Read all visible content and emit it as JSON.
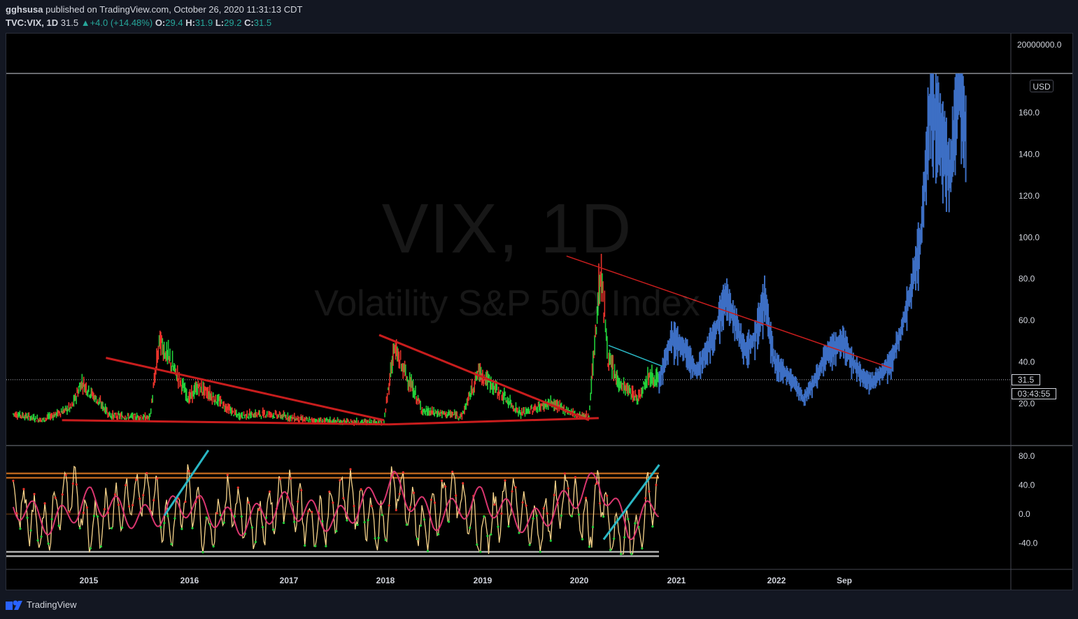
{
  "header": {
    "author": "gghsusa",
    "published_text": "published on TradingView.com, October 26, 2020 11:31:13 CDT",
    "symbol": "TVC:VIX, 1D",
    "last": "31.5",
    "change_arrow": "▲",
    "change": "+4.0 (+14.48%)",
    "o_label": "O:",
    "o_value": "29.4",
    "h_label": "H:",
    "h_value": "31.9",
    "l_label": "L:",
    "l_value": "29.2",
    "c_label": "C:",
    "c_value": "31.5"
  },
  "watermark": {
    "line1": "VIX, 1D",
    "line2": "Volatility S&P 500 Index"
  },
  "currency_badge": "USD",
  "price_tag": "31.5",
  "countdown_tag": "03:43:55",
  "footer": {
    "brand": "TradingView",
    "logo_icon": "tradingview-logo-icon"
  },
  "colors": {
    "background": "#000000",
    "candle_up": "#22d03a",
    "candle_down": "#e8332b",
    "projection": "#3d6fc4",
    "trendline_red": "#c81d1d",
    "trendline_cyan": "#2ab7c4",
    "osc_fast": "#f6d38a",
    "osc_slow": "#d9366f",
    "osc_band": "#b8641c",
    "osc_floor": "#b0b0b0",
    "axis_text": "#d1d4dc"
  },
  "chart_data": [
    {
      "type": "candlestick",
      "title": "VIX, 1D",
      "subtitle": "Volatility S&P 500 Index",
      "ylabel": "USD",
      "x_ticks": [
        "2015",
        "2016",
        "2017",
        "2018",
        "2019",
        "2020",
        "2021",
        "2022",
        "Sep"
      ],
      "y_ticks": [
        "20.0",
        "40.0",
        "60.0",
        "80.0",
        "100.0",
        "120.0",
        "140.0",
        "160.0"
      ],
      "y_top_tick": "20000000.0",
      "ylim": [
        5,
        183
      ],
      "last_price": 31.5,
      "series": [
        {
          "name": "",
          "kind": "historical",
          "x": [
            2014.2,
            2014.5,
            2014.8,
            2014.9,
            2015.2,
            2015.6,
            2015.7,
            2016.0,
            2016.1,
            2016.5,
            2016.8,
            2017.2,
            2017.6,
            2018.0,
            2018.1,
            2018.4,
            2018.8,
            2018.97,
            2019.4,
            2019.7,
            2020.0,
            2020.1,
            2020.22,
            2020.3,
            2020.4,
            2020.6,
            2020.7,
            2020.82
          ],
          "y": [
            15,
            12,
            18,
            30,
            14,
            13,
            50,
            22,
            28,
            14,
            15,
            12,
            11,
            11,
            46,
            16,
            14,
            35,
            15,
            20,
            14,
            14,
            84,
            40,
            30,
            22,
            33,
            31.5
          ]
        },
        {
          "name": "",
          "kind": "projection",
          "x": [
            2020.82,
            2020.95,
            2021.1,
            2021.2,
            2021.4,
            2021.5,
            2021.7,
            2021.8,
            2021.9,
            2022.0,
            2022.1,
            2022.2,
            2022.3,
            2022.4,
            2022.55,
            2022.7,
            2022.8,
            2022.9,
            2023.0,
            2023.1,
            2023.2,
            2023.3,
            2023.4,
            2023.5,
            2023.6,
            2023.7,
            2023.8,
            2023.9,
            2023.97
          ],
          "y": [
            31,
            52,
            45,
            35,
            55,
            72,
            45,
            52,
            70,
            40,
            35,
            30,
            22,
            30,
            45,
            50,
            40,
            33,
            30,
            35,
            40,
            55,
            75,
            100,
            165,
            150,
            130,
            175,
            145
          ]
        }
      ],
      "trendlines": [
        {
          "name": "",
          "x": [
            2015.15,
            2018.0
          ],
          "y": [
            42,
            12
          ]
        },
        {
          "name": "",
          "x": [
            2017.95,
            2020.1
          ],
          "y": [
            53,
            12
          ]
        },
        {
          "name": "",
          "x": [
            2014.7,
            2018.05
          ],
          "y": [
            12,
            10
          ]
        },
        {
          "name": "",
          "x": [
            2018.05,
            2020.2
          ],
          "y": [
            10,
            13
          ]
        },
        {
          "name": "",
          "x": [
            2019.87,
            2023.2
          ],
          "y": [
            91,
            37
          ]
        },
        {
          "name": "",
          "x": [
            2020.3,
            2020.85
          ],
          "y": [
            48,
            38
          ]
        }
      ]
    },
    {
      "type": "line",
      "title": "",
      "y_ticks": [
        "80.0",
        "40.0",
        "0.0",
        "-40.0"
      ],
      "ylim": [
        -60,
        85
      ],
      "bands": [
        50,
        56,
        -52,
        -58
      ],
      "series": [
        {
          "name": "",
          "kind": "fast",
          "x": [
            2014.2,
            2014.5,
            2014.8,
            2015.0,
            2015.4,
            2015.6,
            2015.8,
            2016.0,
            2016.2,
            2016.4,
            2016.7,
            2017.0,
            2017.3,
            2017.6,
            2018.0,
            2018.1,
            2018.4,
            2018.7,
            2019.0,
            2019.3,
            2019.6,
            2019.9,
            2020.1,
            2020.2,
            2020.3,
            2020.45,
            2020.6,
            2020.7,
            2020.82
          ],
          "y": [
            30,
            -40,
            60,
            -40,
            40,
            60,
            -40,
            50,
            -50,
            30,
            -30,
            50,
            -40,
            50,
            -40,
            80,
            -40,
            60,
            -50,
            40,
            -40,
            50,
            -40,
            65,
            -30,
            -50,
            -55,
            40,
            25
          ]
        },
        {
          "name": "",
          "kind": "slow",
          "x": [
            2014.2,
            2014.6,
            2015.0,
            2015.5,
            2016.0,
            2016.5,
            2017.0,
            2017.5,
            2018.1,
            2018.5,
            2019.0,
            2019.5,
            2020.2,
            2020.5,
            2020.82
          ],
          "y": [
            20,
            -20,
            30,
            -10,
            20,
            -20,
            20,
            -15,
            60,
            -10,
            30,
            -20,
            65,
            -30,
            20
          ]
        }
      ],
      "trendlines": [
        {
          "name": "",
          "x": [
            2015.75,
            2016.2
          ],
          "y": [
            -2,
            88
          ]
        },
        {
          "name": "",
          "x": [
            2020.25,
            2020.82
          ],
          "y": [
            -35,
            68
          ]
        }
      ]
    }
  ]
}
